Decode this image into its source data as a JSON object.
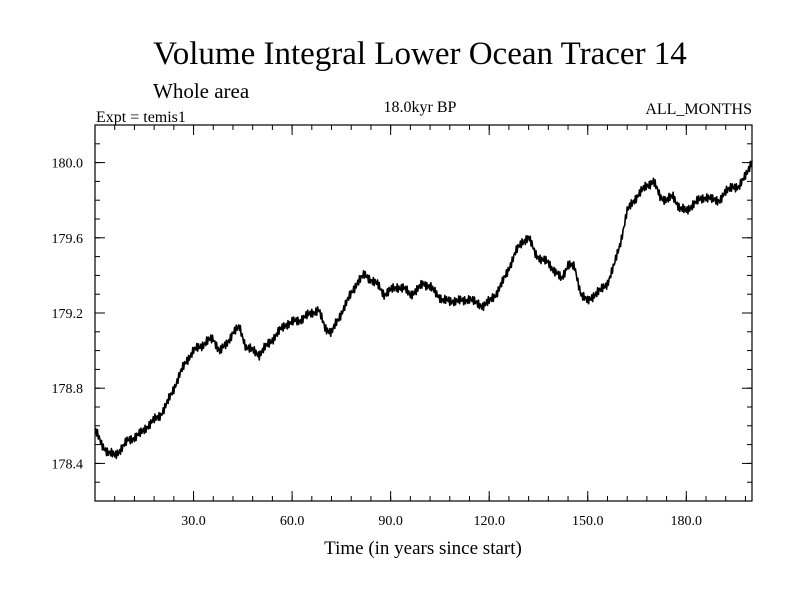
{
  "chart_data": {
    "type": "line",
    "title": "Volume Integral Lower Ocean Tracer 14",
    "subtitle": "Whole area",
    "expt_label": "Expt = temis1",
    "period_label": "18.0kyr BP",
    "months_label": "ALL_MONTHS",
    "xlabel": "Time (in years since start)",
    "ylabel": "",
    "xlim": [
      0,
      200
    ],
    "ylim": [
      178.2,
      180.2
    ],
    "xticks": [
      30,
      60,
      90,
      120,
      150,
      180
    ],
    "xtick_labels": [
      "30.0",
      "60.0",
      "90.0",
      "120.0",
      "150.0",
      "180.0"
    ],
    "yticks": [
      178.4,
      178.8,
      179.2,
      179.6,
      180.0
    ],
    "ytick_labels": [
      "178.4",
      "178.8",
      "179.2",
      "179.6",
      "180.0"
    ],
    "grid": false,
    "series": [
      {
        "name": "Volume Integral Lower Ocean Tracer 14",
        "color": "#000000",
        "x": [
          0,
          2,
          4,
          6,
          8,
          10,
          12,
          14,
          16,
          18,
          20,
          22,
          24,
          26,
          28,
          30,
          32,
          34,
          36,
          38,
          40,
          42,
          44,
          46,
          48,
          50,
          52,
          54,
          56,
          58,
          60,
          62,
          64,
          66,
          68,
          70,
          72,
          74,
          76,
          78,
          80,
          82,
          84,
          86,
          88,
          90,
          92,
          94,
          96,
          98,
          100,
          102,
          104,
          106,
          108,
          110,
          112,
          114,
          116,
          118,
          120,
          122,
          124,
          126,
          128,
          130,
          132,
          134,
          136,
          138,
          140,
          142,
          144,
          146,
          148,
          150,
          152,
          154,
          156,
          158,
          160,
          162,
          164,
          166,
          168,
          170,
          172,
          174,
          176,
          178,
          180,
          182,
          184,
          186,
          188,
          190,
          192,
          194,
          196,
          198,
          200
        ],
        "values": [
          178.58,
          178.5,
          178.46,
          178.44,
          178.48,
          178.52,
          178.54,
          178.56,
          178.6,
          178.63,
          178.66,
          178.72,
          178.8,
          178.88,
          178.95,
          179.0,
          179.02,
          179.05,
          179.06,
          179.0,
          179.03,
          179.1,
          179.12,
          179.02,
          179.0,
          178.98,
          179.02,
          179.06,
          179.1,
          179.14,
          179.15,
          179.16,
          179.18,
          179.2,
          179.22,
          179.12,
          179.1,
          179.16,
          179.24,
          179.3,
          179.37,
          179.4,
          179.38,
          179.35,
          179.3,
          179.32,
          179.34,
          179.33,
          179.3,
          179.32,
          179.36,
          179.34,
          179.3,
          179.27,
          179.26,
          179.27,
          179.26,
          179.28,
          179.25,
          179.24,
          179.26,
          179.3,
          179.36,
          179.44,
          179.52,
          179.58,
          179.6,
          179.52,
          179.48,
          179.47,
          179.42,
          179.38,
          179.46,
          179.44,
          179.3,
          179.26,
          179.3,
          179.32,
          179.36,
          179.45,
          179.58,
          179.74,
          179.8,
          179.84,
          179.88,
          179.9,
          179.82,
          179.8,
          179.82,
          179.76,
          179.74,
          179.78,
          179.8,
          179.82,
          179.8,
          179.8,
          179.84,
          179.88,
          179.86,
          179.94,
          180.0
        ]
      }
    ]
  }
}
